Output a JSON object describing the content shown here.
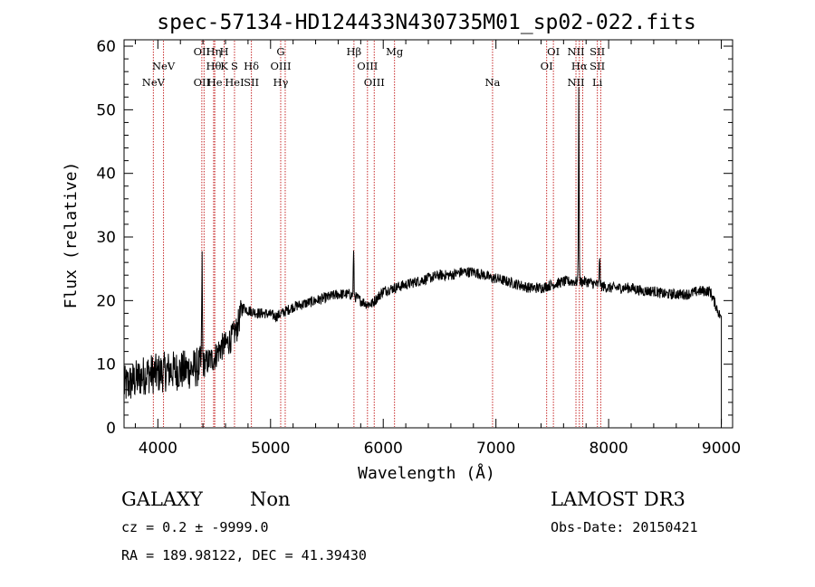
{
  "chart_data": {
    "type": "line",
    "title": "spec-57134-HD124433N430735M01_sp02-022.fits",
    "xlabel": "Wavelength (Å)",
    "ylabel": "Flux (relative)",
    "xlim": [
      3700,
      9100
    ],
    "ylim": [
      0,
      61
    ],
    "x_ticks": [
      4000,
      5000,
      6000,
      7000,
      8000,
      9000
    ],
    "y_ticks": [
      0,
      10,
      20,
      30,
      40,
      50,
      60
    ],
    "series": [
      {
        "name": "spectrum",
        "anchors_x": [
          3700,
          3800,
          3900,
          4000,
          4100,
          4200,
          4300,
          4390,
          4450,
          4500,
          4550,
          4600,
          4650,
          4700,
          4750,
          4800,
          4850,
          4900,
          4950,
          5000,
          5050,
          5100,
          5150,
          5200,
          5300,
          5400,
          5500,
          5600,
          5700,
          5760,
          5800,
          5850,
          5900,
          5950,
          6000,
          6100,
          6200,
          6300,
          6400,
          6500,
          6600,
          6700,
          6800,
          6900,
          6960,
          7000,
          7100,
          7200,
          7300,
          7400,
          7500,
          7600,
          7700,
          7800,
          7900,
          8000,
          8100,
          8200,
          8300,
          8400,
          8500,
          8600,
          8700,
          8800,
          8900,
          8990
        ],
        "anchors_y": [
          6.5,
          7.5,
          8.5,
          8.5,
          9.0,
          9.0,
          9.2,
          9.8,
          10.5,
          11.0,
          12.5,
          13.0,
          14.0,
          15.5,
          19.0,
          18.5,
          18.2,
          18.0,
          18.0,
          17.8,
          17.5,
          18.0,
          18.5,
          19.0,
          19.5,
          20.0,
          20.5,
          21.0,
          21.0,
          20.5,
          20.0,
          19.5,
          19.5,
          20.5,
          21.5,
          22.0,
          22.5,
          23.0,
          23.5,
          24.0,
          24.0,
          24.5,
          24.5,
          24.0,
          23.5,
          23.5,
          23.0,
          22.5,
          22.0,
          22.0,
          22.5,
          23.0,
          23.0,
          23.0,
          22.5,
          22.0,
          22.0,
          22.0,
          21.5,
          21.5,
          21.0,
          21.0,
          21.0,
          21.5,
          21.5,
          17.5
        ],
        "emission_lines": [
          {
            "x": 4392,
            "height": 17
          },
          {
            "x": 5737,
            "height": 7
          },
          {
            "x": 7735,
            "height": 30
          },
          {
            "x": 7920,
            "height": 5
          }
        ],
        "end_drop_x": 9000,
        "end_drop_y": 0.5
      }
    ],
    "marker_lines": [
      {
        "wavelength": 3960,
        "labels": [
          {
            "text": "NeV",
            "row": 3
          }
        ]
      },
      {
        "wavelength": 4050,
        "labels": [
          {
            "text": "NeV",
            "row": 2
          }
        ]
      },
      {
        "wavelength": 4390,
        "labels": [
          {
            "text": "OII",
            "row": 1
          },
          {
            "text": "OII",
            "row": 3
          }
        ]
      },
      {
        "wavelength": 4410,
        "labels": []
      },
      {
        "wavelength": 4495,
        "labels": [
          {
            "text": "Hη",
            "row": 1
          },
          {
            "text": "Hθ",
            "row": 2
          }
        ]
      },
      {
        "wavelength": 4505,
        "labels": [
          {
            "text": "He",
            "row": 3
          }
        ]
      },
      {
        "wavelength": 4588,
        "labels": [
          {
            "text": "H",
            "row": 1
          },
          {
            "text": "K",
            "row": 2
          }
        ]
      },
      {
        "wavelength": 4680,
        "labels": [
          {
            "text": "S",
            "row": 2
          },
          {
            "text": "HeI",
            "row": 3
          }
        ]
      },
      {
        "wavelength": 4830,
        "labels": [
          {
            "text": "Hδ",
            "row": 2
          },
          {
            "text": "SII",
            "row": 3
          }
        ]
      },
      {
        "wavelength": 5090,
        "labels": [
          {
            "text": "G",
            "row": 1
          },
          {
            "text": "OIII",
            "row": 2
          },
          {
            "text": "Hγ",
            "row": 3
          }
        ]
      },
      {
        "wavelength": 5130,
        "labels": []
      },
      {
        "wavelength": 5740,
        "labels": [
          {
            "text": "Hβ",
            "row": 1
          }
        ]
      },
      {
        "wavelength": 5860,
        "labels": [
          {
            "text": "OIII",
            "row": 2
          }
        ]
      },
      {
        "wavelength": 5920,
        "labels": [
          {
            "text": "OIII",
            "row": 3
          }
        ]
      },
      {
        "wavelength": 6100,
        "labels": [
          {
            "text": "Mg",
            "row": 1
          }
        ]
      },
      {
        "wavelength": 6970,
        "labels": [
          {
            "text": "Na",
            "row": 3
          }
        ]
      },
      {
        "wavelength": 7450,
        "labels": [
          {
            "text": "OI",
            "row": 2
          }
        ]
      },
      {
        "wavelength": 7510,
        "labels": [
          {
            "text": "OI",
            "row": 1
          }
        ]
      },
      {
        "wavelength": 7710,
        "labels": [
          {
            "text": "NII",
            "row": 1
          },
          {
            "text": "NII",
            "row": 3
          }
        ]
      },
      {
        "wavelength": 7740,
        "labels": [
          {
            "text": "Hα",
            "row": 2
          }
        ]
      },
      {
        "wavelength": 7770,
        "labels": []
      },
      {
        "wavelength": 7900,
        "labels": [
          {
            "text": "SII",
            "row": 1
          },
          {
            "text": "SII",
            "row": 2
          },
          {
            "text": "Li",
            "row": 3
          }
        ]
      },
      {
        "wavelength": 7930,
        "labels": []
      }
    ]
  },
  "info": {
    "object_class": "GALAXY",
    "subclass": "Non",
    "survey": "LAMOST DR3",
    "redshift_line": "cz = 0.2 ± -9999.0",
    "obs_date_line": "Obs-Date: 20150421",
    "coords_line": "RA = 189.98122, DEC =  41.39430"
  },
  "colors": {
    "marker_line": "#c62828",
    "spectrum": "#000000",
    "axis": "#000000"
  }
}
